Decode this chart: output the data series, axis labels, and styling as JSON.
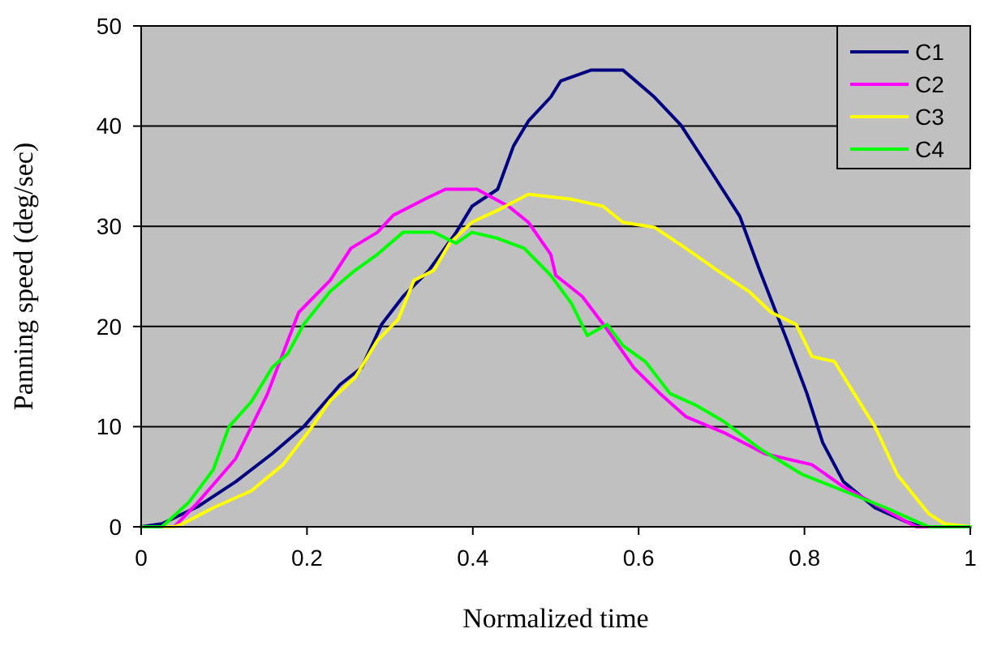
{
  "chart_data": {
    "type": "line",
    "xlabel": "Normalized time",
    "ylabel": "Panning speed (deg/sec)",
    "xlim": [
      0,
      1
    ],
    "ylim": [
      0,
      50
    ],
    "xticks": [
      0,
      0.2,
      0.4,
      0.6,
      0.8,
      1
    ],
    "yticks": [
      0,
      10,
      20,
      30,
      40,
      50
    ],
    "grid": "y",
    "legend": "top right",
    "marker": "none",
    "line_style": "solid",
    "series": [
      {
        "name": "C1",
        "color": "#000080",
        "x": [
          0,
          0.025,
          0.068,
          0.114,
          0.158,
          0.196,
          0.24,
          0.266,
          0.29,
          0.316,
          0.347,
          0.38,
          0.399,
          0.43,
          0.449,
          0.467,
          0.494,
          0.506,
          0.543,
          0.581,
          0.619,
          0.651,
          0.684,
          0.722,
          0.746,
          0.779,
          0.803,
          0.822,
          0.847,
          0.885,
          0.923,
          0.942,
          1
        ],
        "values": [
          0,
          0.3,
          2,
          4.5,
          7.3,
          10,
          14.2,
          15.9,
          20.2,
          23,
          25.6,
          29.4,
          32,
          33.7,
          38,
          40.5,
          42.9,
          44.5,
          45.6,
          45.6,
          42.9,
          40.1,
          35.9,
          31,
          25.6,
          18.6,
          13.3,
          8.4,
          4.5,
          1.9,
          0.5,
          0,
          0
        ]
      },
      {
        "name": "C2",
        "color": "#ff00ff",
        "x": [
          0,
          0.04,
          0.068,
          0.114,
          0.152,
          0.177,
          0.19,
          0.228,
          0.253,
          0.285,
          0.304,
          0.342,
          0.367,
          0.405,
          0.443,
          0.467,
          0.494,
          0.5,
          0.532,
          0.562,
          0.594,
          0.627,
          0.657,
          0.703,
          0.752,
          0.809,
          0.847,
          0.893,
          0.923,
          0.935,
          1
        ],
        "values": [
          0,
          0,
          2.4,
          6.8,
          13.2,
          18.6,
          21.4,
          24.6,
          27.8,
          29.4,
          31.1,
          32.7,
          33.7,
          33.7,
          32,
          30.4,
          27.2,
          25.1,
          23,
          19.7,
          15.9,
          13.2,
          11,
          9.4,
          7.3,
          6.2,
          4,
          1.9,
          0.5,
          0,
          0
        ]
      },
      {
        "name": "C3",
        "color": "#ffff00",
        "x": [
          0,
          0.04,
          0.05,
          0.087,
          0.133,
          0.171,
          0.201,
          0.228,
          0.258,
          0.285,
          0.31,
          0.329,
          0.353,
          0.372,
          0.399,
          0.43,
          0.467,
          0.519,
          0.557,
          0.581,
          0.619,
          0.657,
          0.695,
          0.733,
          0.76,
          0.79,
          0.809,
          0.836,
          0.86,
          0.885,
          0.912,
          0.95,
          0.969,
          1
        ],
        "values": [
          0,
          0,
          0.3,
          1.9,
          3.6,
          6.2,
          9.4,
          12.6,
          14.9,
          18.6,
          20.7,
          24.6,
          25.6,
          28.3,
          30.4,
          31.6,
          33.2,
          32.7,
          32,
          30.4,
          29.9,
          27.8,
          25.6,
          23.5,
          21.4,
          20.2,
          17,
          16.5,
          13.3,
          10,
          5.2,
          1.3,
          0.3,
          0
        ]
      },
      {
        "name": "C4",
        "color": "#00ff00",
        "x": [
          0,
          0.025,
          0.057,
          0.087,
          0.106,
          0.133,
          0.158,
          0.177,
          0.196,
          0.228,
          0.258,
          0.285,
          0.316,
          0.353,
          0.38,
          0.399,
          0.43,
          0.462,
          0.494,
          0.519,
          0.538,
          0.562,
          0.581,
          0.608,
          0.638,
          0.67,
          0.703,
          0.746,
          0.798,
          0.847,
          0.898,
          0.936,
          0.95,
          1
        ],
        "values": [
          0,
          0,
          2.4,
          5.7,
          10,
          12.5,
          15.9,
          17.3,
          20.2,
          23.5,
          25.6,
          27.2,
          29.4,
          29.4,
          28.3,
          29.4,
          28.8,
          27.8,
          25.1,
          22.3,
          19.1,
          20.2,
          18.1,
          16.5,
          13.3,
          12.1,
          10.5,
          7.8,
          5.2,
          3.6,
          1.9,
          0.5,
          0,
          0
        ]
      }
    ]
  }
}
